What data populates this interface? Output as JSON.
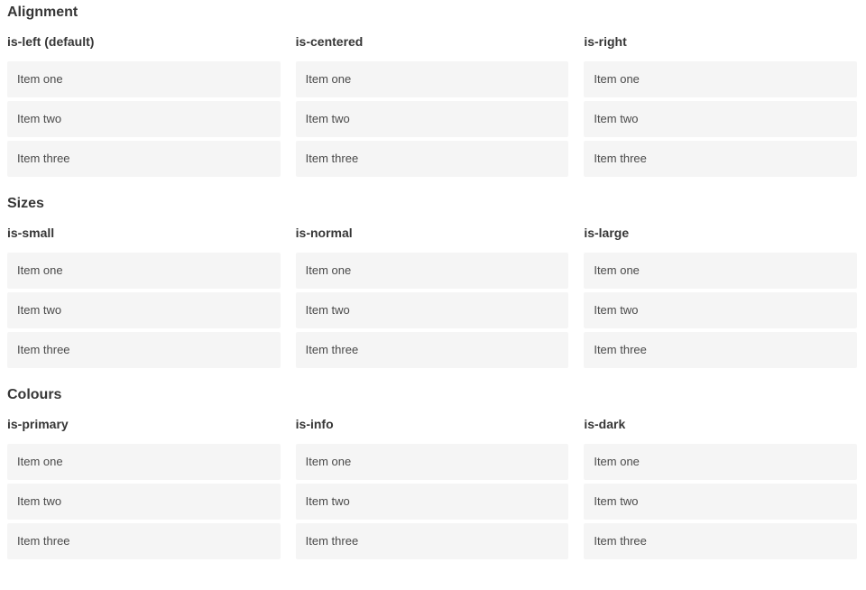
{
  "sections": [
    {
      "title": "Alignment",
      "groups": [
        {
          "label": "is-left (default)",
          "items": [
            "Item one",
            "Item two",
            "Item three"
          ]
        },
        {
          "label": "is-centered",
          "items": [
            "Item one",
            "Item two",
            "Item three"
          ]
        },
        {
          "label": "is-right",
          "items": [
            "Item one",
            "Item two",
            "Item three"
          ]
        }
      ]
    },
    {
      "title": "Sizes",
      "groups": [
        {
          "label": "is-small",
          "items": [
            "Item one",
            "Item two",
            "Item three"
          ]
        },
        {
          "label": "is-normal",
          "items": [
            "Item one",
            "Item two",
            "Item three"
          ]
        },
        {
          "label": "is-large",
          "items": [
            "Item one",
            "Item two",
            "Item three"
          ]
        }
      ]
    },
    {
      "title": "Colours",
      "groups": [
        {
          "label": "is-primary",
          "items": [
            "Item one",
            "Item two",
            "Item three"
          ]
        },
        {
          "label": "is-info",
          "items": [
            "Item one",
            "Item two",
            "Item three"
          ]
        },
        {
          "label": "is-dark",
          "items": [
            "Item one",
            "Item two",
            "Item three"
          ]
        }
      ]
    }
  ],
  "colors": {
    "primary": "#00d1b2",
    "info": "#3298db",
    "dark": "#363636",
    "item_background": "#f5f5f5"
  }
}
